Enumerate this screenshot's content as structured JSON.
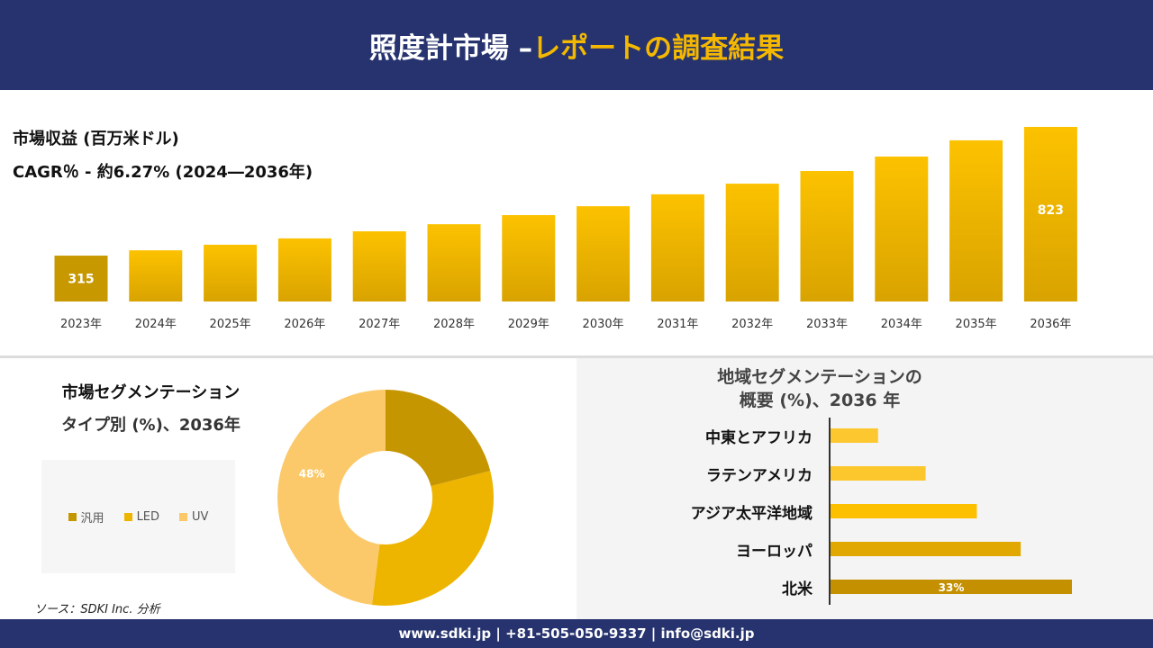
{
  "header": {
    "title_main": "照度計市場 –",
    "title_accent": "レポートの調査結果"
  },
  "revenue": {
    "title": "市場収益 (百万米ドル)",
    "cagr": "CAGR％ - 約6.27% (2024―2036年)"
  },
  "chart_data": [
    {
      "type": "bar",
      "title": "市場収益 (百万米ドル)",
      "categories": [
        "2023年",
        "2024年",
        "2025年",
        "2026年",
        "2027年",
        "2028年",
        "2029年",
        "2030年",
        "2031年",
        "2032年",
        "2033年",
        "2034年",
        "2035年",
        "2036年"
      ],
      "values": [
        315,
        336,
        358,
        383,
        411,
        439,
        475,
        510,
        557,
        599,
        649,
        706,
        770,
        823
      ],
      "data_labels": {
        "0": "315",
        "13": "823"
      },
      "grid": false
    },
    {
      "type": "pie",
      "title": "市場セグメンテーション タイプ別 (%)、2036年",
      "donut": true,
      "categories": [
        "汎用",
        "LED",
        "UV"
      ],
      "values": [
        21,
        31,
        48
      ],
      "colors": [
        "#c59600",
        "#edb400",
        "#fbc96a"
      ],
      "data_labels": {
        "2": "48%"
      },
      "legend": "left"
    },
    {
      "type": "bar",
      "orientation": "horizontal",
      "title": "地域セグメンテーションの 概要 (%)、2036 年",
      "categories": [
        "中東とアフリカ",
        "ラテンアメリカ",
        "アジア太平洋地域",
        "ヨーロッパ",
        "北米"
      ],
      "values": [
        6.5,
        13,
        20,
        26,
        33
      ],
      "colors": [
        "#fdc82f",
        "#fcc72c",
        "#fdc000",
        "#e0a800",
        "#c49000"
      ],
      "data_labels": {
        "4": "33%"
      }
    }
  ],
  "segment": {
    "title1": "市場セグメンテーション",
    "title2": "タイプ別 (%)、2036年"
  },
  "region": {
    "title1": "地域セグメンテーションの",
    "title2": "概要 (%)、2036 年"
  },
  "source": "ソース：SDKI Inc. 分析",
  "footer": "www.sdki.jp | +81-505-050-9337 | info@sdki.jp"
}
